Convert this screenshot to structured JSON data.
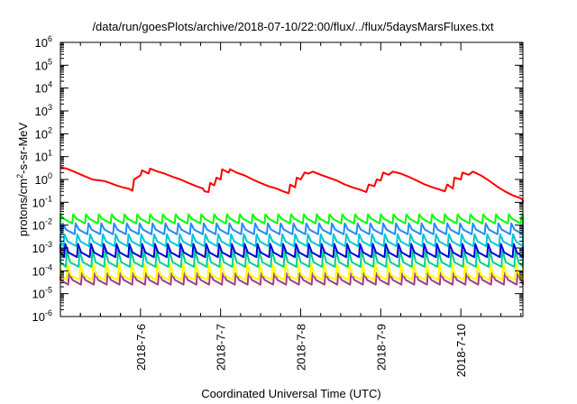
{
  "chart_data": {
    "type": "line",
    "title": "/data/run/goesPlots/archive/2018-07-10/22:00/flux/../flux/5daysMarsFluxes.txt",
    "xlabel": "Coordinated Universal Time (UTC)",
    "ylabel": "protons/cm²-s-sr-MeV",
    "ylabel_parts": {
      "pre": "protons/cm",
      "sup": "2",
      "post": "-s-sr-MeV"
    },
    "y_scale": "log",
    "ylim": [
      1e-06,
      1000000.0
    ],
    "xlim": [
      "2018-07-05 00:00",
      "2018-07-11 00:00"
    ],
    "x_ticks": [
      "2018-7-6",
      "2018-7-7",
      "2018-7-8",
      "2018-7-9",
      "2018-7-10"
    ],
    "y_ticks": [
      {
        "base": "10",
        "exp": "-6"
      },
      {
        "base": "10",
        "exp": "-5"
      },
      {
        "base": "10",
        "exp": "-4"
      },
      {
        "base": "10",
        "exp": "-3"
      },
      {
        "base": "10",
        "exp": "-2"
      },
      {
        "base": "10",
        "exp": "-1"
      },
      {
        "base": "10",
        "exp": "0"
      },
      {
        "base": "10",
        "exp": "1"
      },
      {
        "base": "10",
        "exp": "2"
      },
      {
        "base": "10",
        "exp": "3"
      },
      {
        "base": "10",
        "exp": "4"
      },
      {
        "base": "10",
        "exp": "5"
      },
      {
        "base": "10",
        "exp": "6"
      }
    ],
    "grid": false,
    "legend": "none",
    "series": [
      {
        "color": "#ff0000",
        "points": [
          [
            0.0,
            3.5
          ],
          [
            0.1,
            2.8
          ],
          [
            0.2,
            2.0
          ],
          [
            0.3,
            1.4
          ],
          [
            0.4,
            1.0
          ],
          [
            0.5,
            0.9
          ],
          [
            0.55,
            0.85
          ],
          [
            0.62,
            0.7
          ],
          [
            0.7,
            0.55
          ],
          [
            0.78,
            0.45
          ],
          [
            0.85,
            0.4
          ],
          [
            0.9,
            0.32
          ],
          [
            0.92,
            1.0
          ],
          [
            1.0,
            1.5
          ],
          [
            1.02,
            2.5
          ],
          [
            1.1,
            1.8
          ],
          [
            1.12,
            3.0
          ],
          [
            1.2,
            2.3
          ],
          [
            1.3,
            1.8
          ],
          [
            1.4,
            1.3
          ],
          [
            1.5,
            1.0
          ],
          [
            1.6,
            0.7
          ],
          [
            1.7,
            0.5
          ],
          [
            1.78,
            0.4
          ],
          [
            1.8,
            0.3
          ],
          [
            1.85,
            0.28
          ],
          [
            1.87,
            0.7
          ],
          [
            1.92,
            0.55
          ],
          [
            1.95,
            1.2
          ],
          [
            2.0,
            1.0
          ],
          [
            2.02,
            2.8
          ],
          [
            2.1,
            2.0
          ],
          [
            2.12,
            2.8
          ],
          [
            2.2,
            2.0
          ],
          [
            2.3,
            1.5
          ],
          [
            2.4,
            1.0
          ],
          [
            2.5,
            0.7
          ],
          [
            2.6,
            0.5
          ],
          [
            2.7,
            0.4
          ],
          [
            2.78,
            0.3
          ],
          [
            2.85,
            0.25
          ],
          [
            2.87,
            0.6
          ],
          [
            2.93,
            0.45
          ],
          [
            2.95,
            1.2
          ],
          [
            3.0,
            1.0
          ],
          [
            3.05,
            2.0
          ],
          [
            3.1,
            1.8
          ],
          [
            3.15,
            2.2
          ],
          [
            3.25,
            1.6
          ],
          [
            3.35,
            1.2
          ],
          [
            3.45,
            0.9
          ],
          [
            3.55,
            0.6
          ],
          [
            3.65,
            0.45
          ],
          [
            3.75,
            0.35
          ],
          [
            3.82,
            0.28
          ],
          [
            3.85,
            0.6
          ],
          [
            3.92,
            0.5
          ],
          [
            3.95,
            1.0
          ],
          [
            4.0,
            0.9
          ],
          [
            4.03,
            2.0
          ],
          [
            4.1,
            1.6
          ],
          [
            4.15,
            2.2
          ],
          [
            4.25,
            1.8
          ],
          [
            4.35,
            1.3
          ],
          [
            4.45,
            0.9
          ],
          [
            4.55,
            0.6
          ],
          [
            4.65,
            0.45
          ],
          [
            4.75,
            0.35
          ],
          [
            4.8,
            0.3
          ],
          [
            4.83,
            0.6
          ],
          [
            4.9,
            0.4
          ],
          [
            4.92,
            1.2
          ],
          [
            5.0,
            1.0
          ],
          [
            5.02,
            2.0
          ],
          [
            5.1,
            1.6
          ],
          [
            5.15,
            2.2
          ],
          [
            5.25,
            1.5
          ],
          [
            5.35,
            0.9
          ],
          [
            5.45,
            0.5
          ],
          [
            5.55,
            0.3
          ],
          [
            5.65,
            0.2
          ],
          [
            5.75,
            0.15
          ],
          [
            5.85,
            0.12
          ],
          [
            5.92,
            0.1
          ],
          [
            5.96,
            0.12
          ],
          [
            6.0,
            0.8
          ],
          [
            6.08,
            0.6
          ],
          [
            6.1,
            1.8
          ],
          [
            6.2,
            1.3
          ],
          [
            6.3,
            1.7
          ],
          [
            6.36,
            1.3
          ],
          [
            6.4,
            1.5
          ]
        ]
      },
      {
        "color": "#00ff00",
        "period": 0.16,
        "high": 0.03,
        "low": 0.012,
        "phase": 0.0
      },
      {
        "color": "#1e8cff",
        "period": 0.16,
        "high": 0.012,
        "low": 0.004,
        "phase": 0.03
      },
      {
        "color": "#00c8d8",
        "period": 0.16,
        "high": 0.004,
        "low": 0.0012,
        "phase": 0.05
      },
      {
        "color": "#0000dd",
        "period": 0.16,
        "high": 0.0015,
        "low": 0.0004,
        "phase": 0.06
      },
      {
        "color": "#00d090",
        "period": 0.16,
        "high": 0.0008,
        "low": 0.00015,
        "phase": 0.08
      },
      {
        "color": "#ffff00",
        "period": 0.16,
        "high": 0.0002,
        "low": 4e-05,
        "phase": 0.09
      },
      {
        "color": "#a03c8c",
        "period": 0.16,
        "high": 8e-05,
        "low": 2.5e-05,
        "phase": 0.11
      }
    ]
  }
}
